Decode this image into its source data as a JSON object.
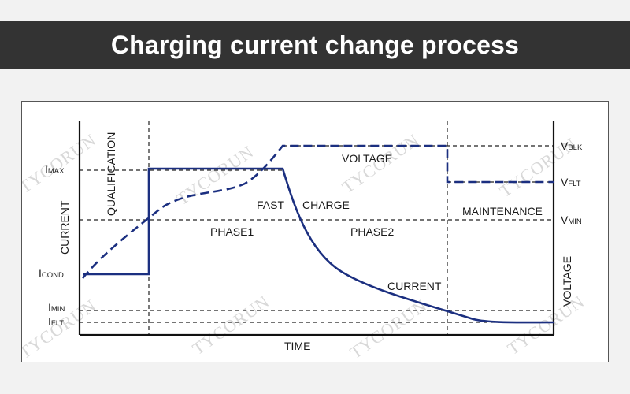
{
  "header": {
    "title": "Charging current change process"
  },
  "diagram": {
    "left_axis_label": "CURRENT",
    "right_axis_label": "VOLTAGE",
    "x_axis_label": "TIME",
    "current_levels": [
      {
        "main": "I",
        "sub": "MAX"
      },
      {
        "main": "I",
        "sub": "COND"
      },
      {
        "main": "I",
        "sub": "MIN"
      },
      {
        "main": "I",
        "sub": "FLT"
      }
    ],
    "voltage_levels": [
      {
        "main": "V",
        "sub": "BLK"
      },
      {
        "main": "V",
        "sub": "FLT"
      },
      {
        "main": "V",
        "sub": "MIN"
      }
    ],
    "phase_labels": {
      "qualification": "QUALIFICATION",
      "fast": "FAST",
      "charge": "CHARGE",
      "phase1": "PHASE1",
      "phase2": "PHASE2",
      "maintenance": "MAINTENANCE"
    },
    "curve_labels": {
      "voltage": "VOLTAGE",
      "current": "CURRENT"
    },
    "watermark": "TYCORUN",
    "colors": {
      "curve": "#1b2f80",
      "axis": "#111111",
      "banner": "#333333"
    }
  }
}
